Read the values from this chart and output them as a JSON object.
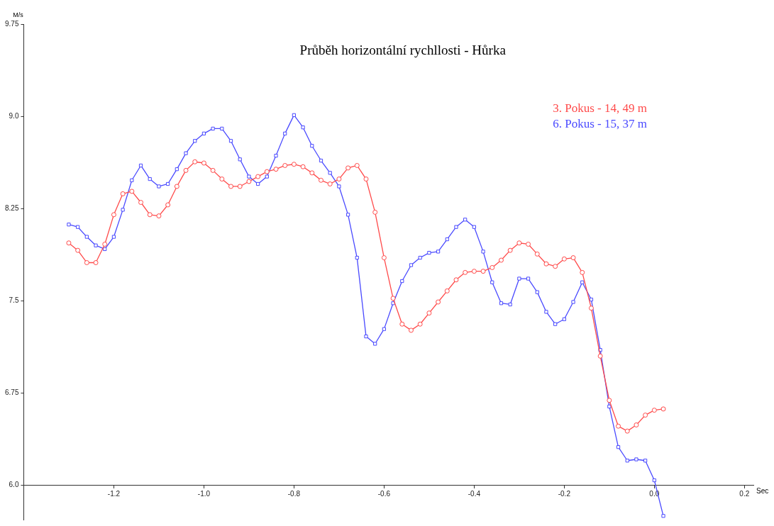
{
  "chart_data": {
    "type": "line",
    "title": "Průběh horizontální rychllosti - Hůrka",
    "xlabel": "Sec",
    "ylabel": "M/s",
    "x": [
      -1.3,
      -1.28,
      -1.26,
      -1.24,
      -1.22,
      -1.2,
      -1.18,
      -1.16,
      -1.14,
      -1.12,
      -1.1,
      -1.08,
      -1.06,
      -1.04,
      -1.02,
      -1.0,
      -0.98,
      -0.96,
      -0.94,
      -0.92,
      -0.9,
      -0.88,
      -0.86,
      -0.84,
      -0.82,
      -0.8,
      -0.78,
      -0.76,
      -0.74,
      -0.72,
      -0.7,
      -0.68,
      -0.66,
      -0.64,
      -0.62,
      -0.6,
      -0.58,
      -0.56,
      -0.54,
      -0.52,
      -0.5,
      -0.48,
      -0.46,
      -0.44,
      -0.42,
      -0.4,
      -0.38,
      -0.36,
      -0.34,
      -0.32,
      -0.3,
      -0.28,
      -0.26,
      -0.24,
      -0.22,
      -0.2,
      -0.18,
      -0.16,
      -0.14,
      -0.12,
      -0.1,
      -0.08,
      -0.06,
      -0.04,
      -0.02,
      0.0,
      0.02
    ],
    "series": [
      {
        "name": "3. Pokus - 14, 49 m",
        "color": "#ff4a4a",
        "marker": "circle",
        "values": [
          7.97,
          7.91,
          7.81,
          7.81,
          7.96,
          8.2,
          8.37,
          8.39,
          8.3,
          8.2,
          8.19,
          8.28,
          8.43,
          8.56,
          8.63,
          8.62,
          8.56,
          8.49,
          8.43,
          8.43,
          8.47,
          8.51,
          8.55,
          8.57,
          8.6,
          8.61,
          8.59,
          8.54,
          8.48,
          8.45,
          8.49,
          8.58,
          8.6,
          8.49,
          8.22,
          7.85,
          7.52,
          7.31,
          7.26,
          7.31,
          7.4,
          7.49,
          7.58,
          7.67,
          7.73,
          7.74,
          7.74,
          7.77,
          7.83,
          7.91,
          7.97,
          7.96,
          7.88,
          7.8,
          7.78,
          7.84,
          7.85,
          7.73,
          7.44,
          7.05,
          6.69,
          6.48,
          6.44,
          6.49,
          6.57,
          6.61,
          6.62
        ]
      },
      {
        "name": "6. Pokus - 15, 37 m",
        "color": "#4a4aff",
        "marker": "square",
        "values": [
          8.12,
          8.1,
          8.02,
          7.95,
          7.92,
          8.02,
          8.24,
          8.48,
          8.6,
          8.49,
          8.43,
          8.45,
          8.57,
          8.7,
          8.8,
          8.86,
          8.9,
          8.9,
          8.8,
          8.65,
          8.51,
          8.45,
          8.51,
          8.68,
          8.86,
          9.01,
          8.91,
          8.76,
          8.64,
          8.54,
          8.43,
          8.2,
          7.85,
          7.21,
          7.15,
          7.27,
          7.48,
          7.66,
          7.79,
          7.85,
          7.89,
          7.9,
          8.0,
          8.1,
          8.16,
          8.1,
          7.9,
          7.65,
          7.48,
          7.47,
          7.68,
          7.68,
          7.57,
          7.41,
          7.31,
          7.35,
          7.49,
          7.65,
          7.51,
          7.1,
          6.64,
          6.31,
          6.2,
          6.21,
          6.2,
          6.04,
          5.75
        ]
      }
    ],
    "xlim": [
      -1.4,
      0.22
    ],
    "xticks": [
      -1.2,
      {
        "value": -1.0,
        "label": "-1.0"
      },
      -0.8,
      -0.6,
      -0.4,
      -0.2,
      {
        "value": 0.0,
        "label": "0.0"
      },
      0.2
    ],
    "ylim": [
      5.72,
      9.75
    ],
    "yticks": [
      {
        "value": 6.0,
        "label": "6.0"
      },
      6.75,
      7.5,
      8.25,
      {
        "value": 9.0,
        "label": "9.0"
      },
      9.75
    ],
    "legend": "top right",
    "grid": false,
    "line_style": "solid"
  }
}
